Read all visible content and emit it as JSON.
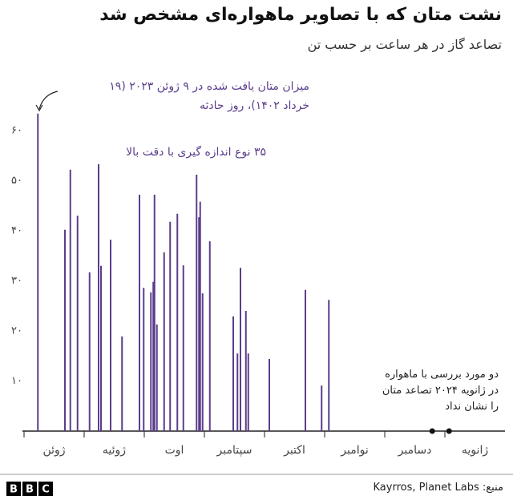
{
  "chart_data": {
    "type": "stem",
    "title": "نشت متان که با تصاویر ماهواره‌ای مشخص شد",
    "subtitle": "تصاعد گاز در هر ساعت بر حسب تن",
    "annotations": [
      [
        "میزان متان یافت شده در ۹ ژوئن ۲۰۲۳ (۱۹",
        "خرداد ۱۴۰۲)، روز حادثه"
      ],
      [
        "۳۵ نوع اندازه گیری با دقت بالا"
      ],
      [
        "دو مورد بررسی با ماهواره",
        "در ژانویه ۲۰۲۴ تصاعد متان",
        "را نشان نداد"
      ]
    ],
    "categories": [
      "ژوئن",
      "ژوئیه",
      "اوت",
      "سپتامبر",
      "اکتبر",
      "نوامبر",
      "دسامبر",
      "ژانویه"
    ],
    "xlim": [
      0,
      8
    ],
    "ylim": [
      0,
      60
    ],
    "yticks": [
      {
        "value": 10,
        "label": "۱۰"
      },
      {
        "value": 20,
        "label": "۲۰"
      },
      {
        "value": 30,
        "label": "۳۰"
      },
      {
        "value": 40,
        "label": "۴۰"
      },
      {
        "value": 50,
        "label": "۵۰"
      },
      {
        "value": 60,
        "label": "۶۰"
      }
    ],
    "grid": false,
    "series": [
      {
        "color": "#5b3d8c",
        "x": [
          0.23,
          0.68,
          0.77,
          0.89,
          1.09,
          1.24,
          1.28,
          1.44,
          1.63,
          1.92,
          1.99,
          2.11,
          2.15,
          2.17,
          2.21,
          2.33,
          2.43,
          2.55,
          2.65,
          2.87,
          2.91,
          2.93,
          2.97,
          3.09,
          3.48,
          3.55,
          3.6,
          3.69,
          3.73,
          4.08,
          4.68,
          4.95,
          5.07
        ],
        "values": [
          63.4,
          40.2,
          52.2,
          43,
          31.7,
          53.3,
          33,
          38.2,
          18.9,
          47.2,
          28.6,
          27.7,
          29.8,
          47.2,
          21.3,
          35.7,
          41.8,
          43.4,
          33.1,
          51.2,
          42.7,
          45.8,
          27.5,
          37.9,
          22.9,
          15.5,
          32.6,
          24,
          15.5,
          14.4,
          28.2,
          9.1,
          26.2
        ]
      },
      {
        "color": "#111111",
        "x": [
          6.79,
          7.07
        ],
        "values": [
          0,
          0
        ]
      }
    ],
    "source": "منبع: Kayrros, Planet Labs",
    "logo": [
      "B",
      "B",
      "C"
    ]
  }
}
